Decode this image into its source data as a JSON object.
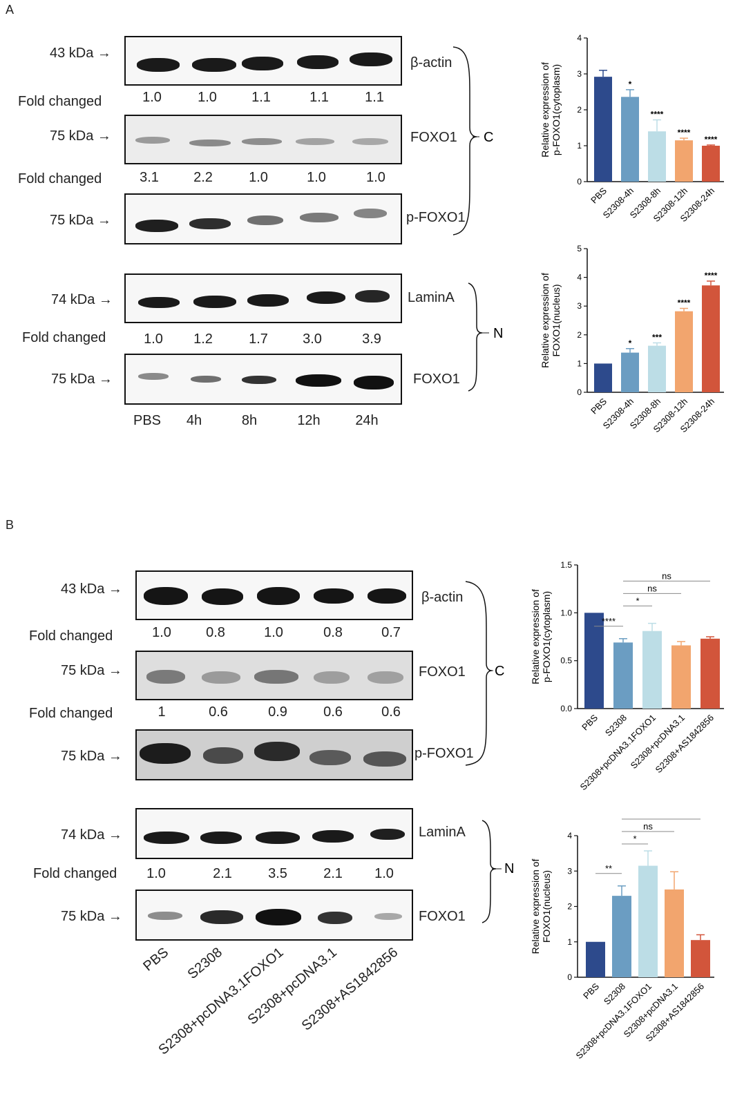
{
  "panels": {
    "a": "A",
    "b": "B"
  },
  "panelA": {
    "mw": {
      "actin": "43 kDa",
      "foxo1": "75 kDa",
      "pfoxo1": "75 kDa",
      "lamin": "74 kDa",
      "foxo1n": "75 kDa"
    },
    "fold_label": "Fold changed",
    "proteins": {
      "actin": "β-actin",
      "foxo1": "FOXO1",
      "pfoxo1": "p-FOXO1",
      "lamin": "LaminA",
      "foxo1n": "FOXO1"
    },
    "fold_actin": [
      "1.0",
      "1.0",
      "1.1",
      "1.1",
      "1.1"
    ],
    "fold_foxo1": [
      "3.1",
      "2.2",
      "1.0",
      "1.0",
      "1.0"
    ],
    "fold_lamin": [
      "1.0",
      "1.2",
      "1.7",
      "3.0",
      "3.9"
    ],
    "lanes": [
      "PBS",
      "4h",
      "8h",
      "12h",
      "24h"
    ],
    "bracket_c": "C",
    "bracket_n": "N"
  },
  "panelB": {
    "mw": {
      "actin": "43 kDa",
      "foxo1": "75 kDa",
      "pfoxo1": "75 kDa",
      "lamin": "74 kDa",
      "foxo1n": "75 kDa"
    },
    "fold_label": "Fold changed",
    "proteins": {
      "actin": "β-actin",
      "foxo1": "FOXO1",
      "pfoxo1": "p-FOXO1",
      "lamin": "LaminA",
      "foxo1n": "FOXO1"
    },
    "fold_actin": [
      "1.0",
      "0.8",
      "1.0",
      "0.8",
      "0.7"
    ],
    "fold_foxo1": [
      "1",
      "0.6",
      "0.9",
      "0.6",
      "0.6"
    ],
    "fold_lamin": [
      "1.0",
      "2.1",
      "3.5",
      "2.1",
      "1.0"
    ],
    "lanes": [
      "PBS",
      "S2308",
      "S2308+pcDNA3.1FOXO1",
      "S2308+pcDNA3.1",
      "S2308+AS1842856"
    ],
    "bracket_c": "C",
    "bracket_n": "N"
  },
  "chart_data": [
    {
      "type": "bar",
      "ylabel": "Relative expression of p-FOXO1(cytoplasm)",
      "categories": [
        "PBS",
        "S2308-4h",
        "S2308-8h",
        "S2308-12h",
        "S2308-24h"
      ],
      "values": [
        2.92,
        2.36,
        1.4,
        1.15,
        1.0
      ],
      "errors": [
        0.18,
        0.2,
        0.32,
        0.06,
        0.02
      ],
      "sig": [
        "",
        "*",
        "****",
        "****",
        "****"
      ],
      "ylim": [
        0,
        4
      ],
      "yticks": [
        "0",
        "1",
        "2",
        "3",
        "4"
      ],
      "colors": [
        "#2d4a8c",
        "#6b9dc2",
        "#bcdde6",
        "#f2a56e",
        "#d2553b"
      ]
    },
    {
      "type": "bar",
      "ylabel": "Relative expression of FOXO1(nucleus)",
      "categories": [
        "PBS",
        "S2308-4h",
        "S2308-8h",
        "S2308-12h",
        "S2308-24h"
      ],
      "values": [
        1.0,
        1.38,
        1.62,
        2.82,
        3.72
      ],
      "errors": [
        0.0,
        0.14,
        0.1,
        0.1,
        0.15
      ],
      "sig": [
        "",
        "*",
        "***",
        "****",
        "****"
      ],
      "ylim": [
        0,
        5
      ],
      "yticks": [
        "0",
        "1",
        "2",
        "3",
        "4",
        "5"
      ],
      "colors": [
        "#2d4a8c",
        "#6b9dc2",
        "#bcdde6",
        "#f2a56e",
        "#d2553b"
      ]
    },
    {
      "type": "bar",
      "ylabel": "Relative expression of p-FOXO1(cytoplasm)",
      "categories": [
        "PBS",
        "S2308",
        "S2308+pcDNA3.1FOXO1",
        "S2308+pcDNA3.1",
        "S2308+AS1842856"
      ],
      "values": [
        1.0,
        0.69,
        0.81,
        0.66,
        0.73
      ],
      "errors": [
        0.0,
        0.04,
        0.08,
        0.04,
        0.02
      ],
      "ylim": [
        0,
        1.5
      ],
      "yticks": [
        "0.0",
        "0.5",
        "1.0",
        "1.5"
      ],
      "colors": [
        "#2d4a8c",
        "#6b9dc2",
        "#bcdde6",
        "#f2a56e",
        "#d2553b"
      ],
      "comparisons": [
        {
          "from": 0,
          "to": 1,
          "label": "****"
        },
        {
          "from": 1,
          "to": 2,
          "label": "*"
        },
        {
          "from": 1,
          "to": 3,
          "label": "ns"
        },
        {
          "from": 1,
          "to": 4,
          "label": "ns"
        }
      ]
    },
    {
      "type": "bar",
      "ylabel": "Relative expression of FOXO1(nucleus)",
      "categories": [
        "PBS",
        "S2308",
        "S2308+pcDNA3.1FOXO1",
        "S2308+pcDNA3.1",
        "S2308+AS1842856"
      ],
      "values": [
        1.0,
        2.3,
        3.15,
        2.48,
        1.05
      ],
      "errors": [
        0.0,
        0.28,
        0.42,
        0.5,
        0.15
      ],
      "ylim": [
        0,
        4
      ],
      "yticks": [
        "0",
        "1",
        "2",
        "3",
        "4"
      ],
      "colors": [
        "#2d4a8c",
        "#6b9dc2",
        "#bcdde6",
        "#f2a56e",
        "#d2553b"
      ],
      "comparisons": [
        {
          "from": 0,
          "to": 1,
          "label": "**"
        },
        {
          "from": 1,
          "to": 2,
          "label": "*"
        },
        {
          "from": 1,
          "to": 3,
          "label": "ns"
        },
        {
          "from": 1,
          "to": 4,
          "label": "**"
        }
      ]
    }
  ]
}
